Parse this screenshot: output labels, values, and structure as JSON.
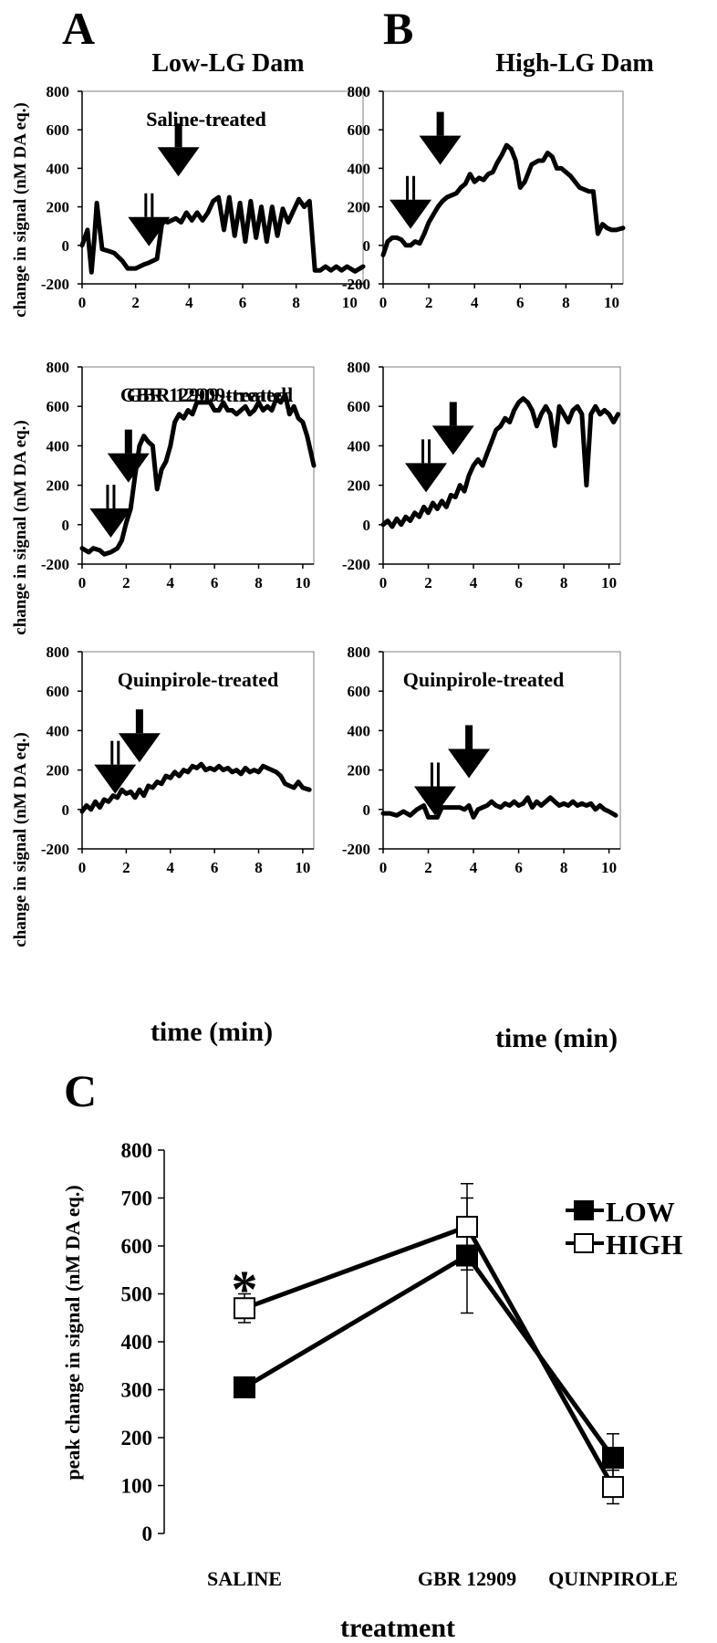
{
  "figure": {
    "panel_letters": [
      "A",
      "B",
      "C"
    ],
    "column_titles": [
      "Low-LG Dam",
      "High-LG Dam"
    ],
    "row_ylabel": "change in signal (nM DA eq.)",
    "time_xlabel": "time (min)"
  },
  "chart_data": [
    {
      "type": "line",
      "panel": "A",
      "condition": "Saline-treated",
      "column": "Low-LG Dam",
      "xlabel": "time (min)",
      "ylabel": "change in signal (nM DA eq.)",
      "xlim": [
        0,
        10.5
      ],
      "ylim": [
        -200,
        800
      ],
      "xticks": [
        0,
        2,
        4,
        6,
        8,
        10
      ],
      "yticks": [
        -200,
        0,
        200,
        400,
        600,
        800
      ],
      "arrows": [
        {
          "kind": "double",
          "x": 2.5
        },
        {
          "kind": "single",
          "x": 3.6
        }
      ],
      "x": [
        0,
        0.2,
        0.35,
        0.45,
        0.55,
        0.75,
        1,
        1.2,
        1.5,
        1.7,
        2,
        2.3,
        2.5,
        2.8,
        3,
        3.2,
        3.5,
        3.7,
        3.9,
        4.1,
        4.3,
        4.5,
        4.7,
        4.9,
        5.1,
        5.3,
        5.5,
        5.7,
        5.9,
        6.1,
        6.3,
        6.5,
        6.7,
        6.9,
        7.1,
        7.3,
        7.5,
        7.7,
        7.9,
        8.1,
        8.3,
        8.5,
        8.7,
        8.9,
        9.1,
        9.3,
        9.5,
        9.7,
        9.9,
        10.2,
        10.5
      ],
      "y": [
        0,
        80,
        -140,
        20,
        220,
        -20,
        -30,
        -40,
        -80,
        -120,
        -120,
        -100,
        -90,
        -70,
        130,
        120,
        140,
        120,
        170,
        130,
        170,
        130,
        170,
        230,
        250,
        80,
        250,
        50,
        220,
        20,
        230,
        40,
        200,
        20,
        200,
        50,
        190,
        120,
        180,
        240,
        200,
        230,
        -130,
        -130,
        -110,
        -130,
        -110,
        -130,
        -110,
        -135,
        -110
      ]
    },
    {
      "type": "line",
      "panel": "B",
      "condition": "Saline-treated",
      "column": "High-LG Dam",
      "xlabel": "time (min)",
      "ylabel": "change in signal (nM DA eq.)",
      "xlim": [
        0,
        10.5
      ],
      "ylim": [
        -200,
        800
      ],
      "xticks": [
        0,
        2,
        4,
        6,
        8,
        10
      ],
      "yticks": [
        -200,
        0,
        200,
        400,
        600,
        800
      ],
      "arrows": [
        {
          "kind": "double",
          "x": 1.2
        },
        {
          "kind": "single",
          "x": 2.5
        }
      ],
      "x": [
        0,
        0.2,
        0.4,
        0.6,
        0.8,
        1.0,
        1.2,
        1.4,
        1.6,
        1.8,
        2.0,
        2.2,
        2.4,
        2.6,
        2.8,
        3.0,
        3.2,
        3.4,
        3.6,
        3.8,
        4.0,
        4.2,
        4.4,
        4.6,
        4.8,
        5.0,
        5.2,
        5.4,
        5.6,
        5.8,
        6.0,
        6.2,
        6.5,
        6.8,
        7.0,
        7.2,
        7.4,
        7.6,
        7.8,
        8.0,
        8.2,
        8.4,
        8.6,
        8.8,
        9.0,
        9.2,
        9.4,
        9.6,
        9.8,
        10.0,
        10.2,
        10.5
      ],
      "y": [
        -50,
        20,
        40,
        40,
        30,
        0,
        0,
        20,
        10,
        60,
        120,
        160,
        200,
        230,
        250,
        260,
        270,
        300,
        320,
        370,
        330,
        350,
        340,
        370,
        380,
        430,
        470,
        520,
        500,
        440,
        300,
        330,
        420,
        440,
        440,
        480,
        460,
        400,
        400,
        380,
        360,
        330,
        300,
        290,
        280,
        280,
        60,
        110,
        90,
        80,
        80,
        90
      ]
    },
    {
      "type": "line",
      "panel": "A",
      "condition": "GBR 12909-treated",
      "column": "Low-LG Dam",
      "xlabel": "time (min)",
      "ylabel": "change in signal (nM DA eq.)",
      "xlim": [
        0,
        10.5
      ],
      "ylim": [
        -200,
        800
      ],
      "xticks": [
        0,
        2,
        4,
        6,
        8,
        10
      ],
      "yticks": [
        -200,
        0,
        200,
        400,
        600,
        800
      ],
      "arrows": [
        {
          "kind": "double",
          "x": 1.3
        },
        {
          "kind": "single",
          "x": 2.1
        }
      ],
      "x": [
        0,
        0.3,
        0.5,
        0.8,
        1.0,
        1.3,
        1.6,
        1.8,
        2.0,
        2.2,
        2.4,
        2.6,
        2.8,
        3.0,
        3.2,
        3.4,
        3.6,
        3.8,
        4.0,
        4.2,
        4.4,
        4.6,
        4.8,
        5.0,
        5.2,
        5.4,
        5.6,
        5.8,
        6.0,
        6.2,
        6.4,
        6.6,
        6.8,
        7.0,
        7.2,
        7.4,
        7.6,
        7.8,
        8.0,
        8.2,
        8.4,
        8.6,
        8.8,
        9.0,
        9.2,
        9.4,
        9.6,
        9.8,
        10.0,
        10.2,
        10.5
      ],
      "y": [
        -120,
        -140,
        -120,
        -130,
        -150,
        -140,
        -120,
        -80,
        10,
        80,
        250,
        400,
        450,
        420,
        400,
        180,
        280,
        320,
        400,
        520,
        560,
        540,
        580,
        560,
        620,
        620,
        620,
        620,
        580,
        580,
        620,
        580,
        580,
        560,
        580,
        600,
        560,
        580,
        620,
        580,
        600,
        580,
        640,
        620,
        660,
        560,
        600,
        540,
        520,
        450,
        300
      ]
    },
    {
      "type": "line",
      "panel": "B",
      "condition": "GBR 12909-treated",
      "column": "High-LG Dam",
      "xlabel": "time (min)",
      "ylabel": "change in signal (nM DA eq.)",
      "xlim": [
        0,
        10.5
      ],
      "ylim": [
        -200,
        800
      ],
      "xticks": [
        0,
        2,
        4,
        6,
        8,
        10
      ],
      "yticks": [
        -200,
        0,
        200,
        400,
        600,
        800
      ],
      "arrows": [
        {
          "kind": "double",
          "x": 1.9
        },
        {
          "kind": "single",
          "x": 3.1
        }
      ],
      "x": [
        0,
        0.2,
        0.4,
        0.6,
        0.8,
        1.0,
        1.2,
        1.4,
        1.6,
        1.8,
        2.0,
        2.2,
        2.4,
        2.6,
        2.8,
        3.0,
        3.2,
        3.4,
        3.6,
        3.8,
        4.0,
        4.2,
        4.4,
        4.6,
        4.8,
        5.0,
        5.2,
        5.4,
        5.6,
        5.8,
        6.0,
        6.2,
        6.4,
        6.6,
        6.8,
        7.0,
        7.2,
        7.4,
        7.6,
        7.8,
        8.0,
        8.2,
        8.4,
        8.6,
        8.8,
        9.0,
        9.2,
        9.4,
        9.6,
        9.8,
        10.0,
        10.2,
        10.4
      ],
      "y": [
        0,
        20,
        -10,
        30,
        0,
        40,
        20,
        60,
        40,
        90,
        60,
        110,
        80,
        120,
        90,
        150,
        140,
        200,
        170,
        250,
        300,
        330,
        300,
        360,
        420,
        480,
        500,
        540,
        520,
        580,
        620,
        640,
        620,
        580,
        500,
        560,
        600,
        560,
        400,
        600,
        560,
        520,
        580,
        600,
        560,
        200,
        560,
        600,
        560,
        580,
        560,
        520,
        560
      ]
    },
    {
      "type": "line",
      "panel": "A",
      "condition": "Quinpirole-treated",
      "column": "Low-LG Dam",
      "xlabel": "time (min)",
      "ylabel": "change in signal (nM DA eq.)",
      "xlim": [
        0,
        10.5
      ],
      "ylim": [
        -200,
        800
      ],
      "xticks": [
        0,
        2,
        4,
        6,
        8,
        10
      ],
      "yticks": [
        -200,
        0,
        200,
        400,
        600,
        800
      ],
      "arrows": [
        {
          "kind": "double",
          "x": 1.5
        },
        {
          "kind": "single",
          "x": 2.6
        }
      ],
      "x": [
        0,
        0.2,
        0.4,
        0.6,
        0.8,
        1.0,
        1.2,
        1.4,
        1.6,
        1.8,
        2.0,
        2.2,
        2.4,
        2.6,
        2.8,
        3.0,
        3.2,
        3.4,
        3.6,
        3.8,
        4.0,
        4.2,
        4.4,
        4.6,
        4.8,
        5.0,
        5.2,
        5.4,
        5.6,
        5.8,
        6.0,
        6.2,
        6.4,
        6.6,
        6.8,
        7.0,
        7.2,
        7.4,
        7.6,
        7.8,
        8.0,
        8.2,
        8.4,
        8.6,
        8.8,
        9.0,
        9.2,
        9.4,
        9.6,
        9.8,
        10.0,
        10.3
      ],
      "y": [
        -10,
        20,
        0,
        40,
        10,
        50,
        40,
        70,
        60,
        100,
        80,
        90,
        60,
        100,
        70,
        120,
        110,
        140,
        130,
        170,
        160,
        190,
        170,
        200,
        190,
        220,
        210,
        230,
        200,
        210,
        200,
        220,
        200,
        210,
        190,
        200,
        180,
        210,
        190,
        200,
        190,
        220,
        210,
        200,
        190,
        170,
        130,
        120,
        110,
        140,
        110,
        100
      ]
    },
    {
      "type": "line",
      "panel": "B",
      "condition": "Quinpirole-treated",
      "column": "High-LG Dam",
      "xlabel": "time (min)",
      "ylabel": "change in signal (nM DA eq.)",
      "xlim": [
        0,
        10.5
      ],
      "ylim": [
        -200,
        800
      ],
      "xticks": [
        0,
        2,
        4,
        6,
        8,
        10
      ],
      "yticks": [
        -200,
        0,
        200,
        400,
        600,
        800
      ],
      "arrows": [
        {
          "kind": "double",
          "x": 2.3
        },
        {
          "kind": "single",
          "x": 3.8
        }
      ],
      "x": [
        0,
        0.3,
        0.6,
        0.9,
        1.2,
        1.5,
        1.8,
        2.0,
        2.2,
        2.4,
        2.6,
        2.8,
        3.0,
        3.2,
        3.4,
        3.6,
        3.8,
        4.0,
        4.2,
        4.4,
        4.6,
        4.8,
        5.0,
        5.2,
        5.4,
        5.6,
        5.8,
        6.0,
        6.2,
        6.4,
        6.6,
        6.8,
        7.0,
        7.2,
        7.4,
        7.6,
        7.8,
        8.0,
        8.2,
        8.4,
        8.6,
        8.8,
        9.0,
        9.2,
        9.4,
        9.6,
        9.8,
        10.0,
        10.3
      ],
      "y": [
        -20,
        -20,
        -30,
        -10,
        -30,
        0,
        20,
        -40,
        -40,
        -40,
        10,
        10,
        10,
        10,
        10,
        0,
        20,
        -40,
        0,
        10,
        20,
        40,
        20,
        10,
        30,
        20,
        40,
        20,
        30,
        60,
        10,
        40,
        20,
        40,
        60,
        40,
        20,
        30,
        20,
        40,
        20,
        30,
        20,
        30,
        0,
        20,
        0,
        -10,
        -30
      ]
    },
    {
      "type": "line",
      "panel": "C",
      "xlabel": "treatment",
      "ylabel": "peak change in signal (nM DA eq.)",
      "categories": [
        "SALINE",
        "GBR 12909",
        "QUINPIROLE"
      ],
      "ylim": [
        0,
        800
      ],
      "yticks": [
        0,
        100,
        200,
        300,
        400,
        500,
        600,
        700,
        800
      ],
      "legend_position": "top-right",
      "significance_marker": {
        "category": "SALINE",
        "text": "*"
      },
      "series": [
        {
          "name": "LOW",
          "marker": "filled-square",
          "values": [
            305,
            580,
            158
          ],
          "error": [
            0,
            120,
            50
          ]
        },
        {
          "name": "HIGH",
          "marker": "open-square",
          "values": [
            470,
            640,
            97
          ],
          "error": [
            30,
            90,
            35
          ]
        }
      ]
    }
  ]
}
